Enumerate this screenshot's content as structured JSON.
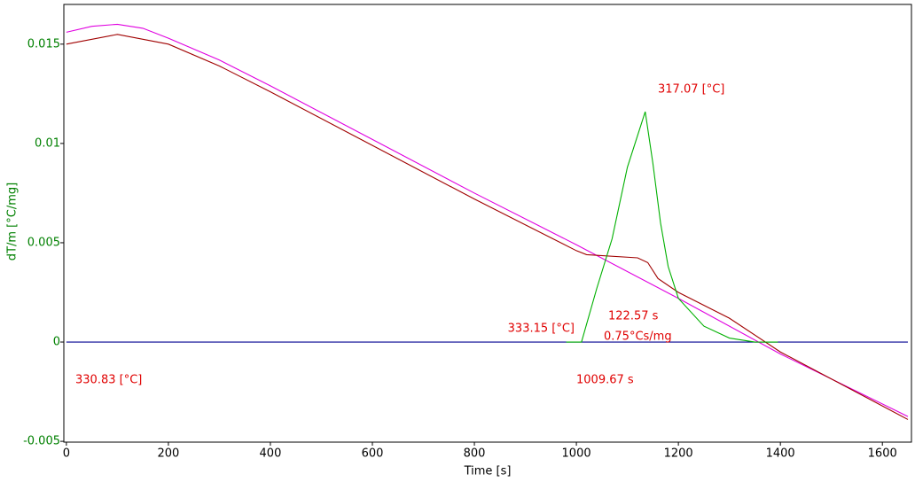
{
  "chart_data": {
    "type": "line",
    "x_label": "Time [s]",
    "y_label": "dT/m  [°C/mg]",
    "xlim": [
      -5,
      1657
    ],
    "ylim": [
      -0.00504,
      0.017
    ],
    "xticks": [
      0,
      200,
      400,
      600,
      800,
      1000,
      1200,
      1400,
      1600
    ],
    "yticks": [
      -0.005,
      0,
      0.005,
      0.01,
      0.015
    ],
    "series": [
      {
        "color": "#000090",
        "x": [
          0,
          1650
        ],
        "values": [
          0,
          0
        ]
      },
      {
        "color": "#e000e0",
        "x": [
          0,
          50,
          100,
          150,
          200,
          300,
          400,
          600,
          800,
          1000,
          1200,
          1400,
          1650
        ],
        "values": [
          0.0156,
          0.0159,
          0.016,
          0.0158,
          0.0153,
          0.0142,
          0.0129,
          0.0102,
          0.0075,
          0.0049,
          0.0022,
          -0.0006,
          -0.00375
        ]
      },
      {
        "color": "#a00000",
        "x": [
          0,
          100,
          200,
          300,
          400,
          600,
          800,
          1000,
          1020,
          1120,
          1140,
          1160,
          1200,
          1300,
          1400,
          1650
        ],
        "values": [
          0.015,
          0.01549,
          0.015,
          0.0139,
          0.0126,
          0.0099,
          0.0072,
          0.0046,
          0.0044,
          0.00424,
          0.004,
          0.0032,
          0.0025,
          0.0012,
          -0.0005,
          -0.0039
        ]
      },
      {
        "color": "#00b000",
        "x": [
          980,
          1010,
          1040,
          1070,
          1100,
          1135,
          1150,
          1165,
          1180,
          1200,
          1250,
          1300,
          1350,
          1395
        ],
        "values": [
          0,
          0,
          0.0027,
          0.0052,
          0.0088,
          0.0116,
          0.009,
          0.006,
          0.0038,
          0.0022,
          0.0008,
          0.0002,
          0,
          0
        ]
      }
    ],
    "annotations": [
      "317.07 [°C]",
      "333.15 [°C]",
      "122.57 s",
      "0.75°Cs/mg",
      "330.83 [°C]",
      "1009.67 s"
    ]
  }
}
